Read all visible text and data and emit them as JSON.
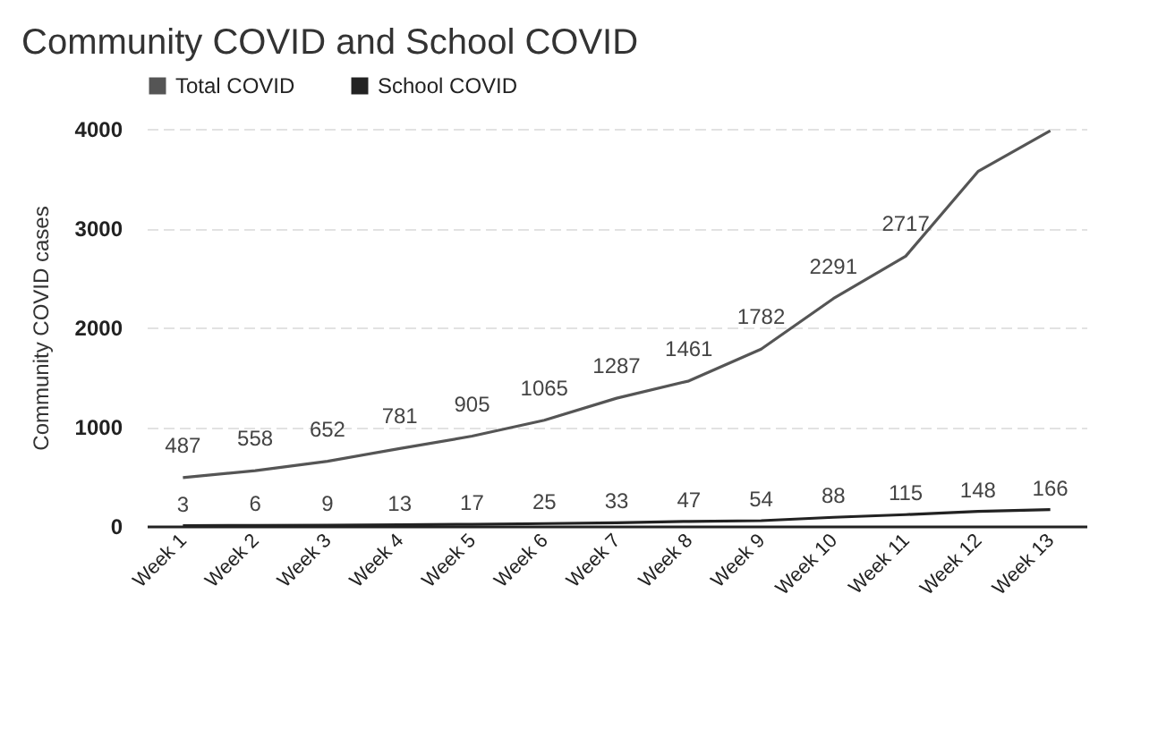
{
  "chart_data": {
    "type": "line",
    "title": "Community COVID  and School COVID",
    "ylabel": "Community COVID cases",
    "categories": [
      "Week 1",
      "Week 2",
      "Week 3",
      "Week 4",
      "Week 5",
      "Week 6",
      "Week 7",
      "Week 8",
      "Week 9",
      "Week 10",
      "Week 11",
      "Week 12",
      "Week 13"
    ],
    "series": [
      {
        "name": "Total COVID",
        "color": "#555555",
        "values": [
          487,
          558,
          652,
          781,
          905,
          1065,
          1287,
          1461,
          1782,
          2291,
          2717,
          3570,
          3980
        ],
        "value_labels": [
          "487",
          "558",
          "652",
          "781",
          "905",
          "1065",
          "1287",
          "1461",
          "1782",
          "2291",
          "2717",
          null,
          null
        ]
      },
      {
        "name": "School COVID",
        "color": "#222222",
        "values": [
          3,
          6,
          9,
          13,
          17,
          25,
          33,
          47,
          54,
          88,
          115,
          148,
          166
        ],
        "value_labels": [
          "3",
          "6",
          "9",
          "13",
          "17",
          "25",
          "33",
          "47",
          "54",
          "88",
          "115",
          "148",
          "166"
        ]
      }
    ],
    "ylim": [
      0,
      4000
    ],
    "yticks": [
      0,
      1000,
      2000,
      3000,
      4000
    ],
    "grid": "y",
    "legend": "top",
    "marker": "none",
    "line_style": "solid"
  }
}
